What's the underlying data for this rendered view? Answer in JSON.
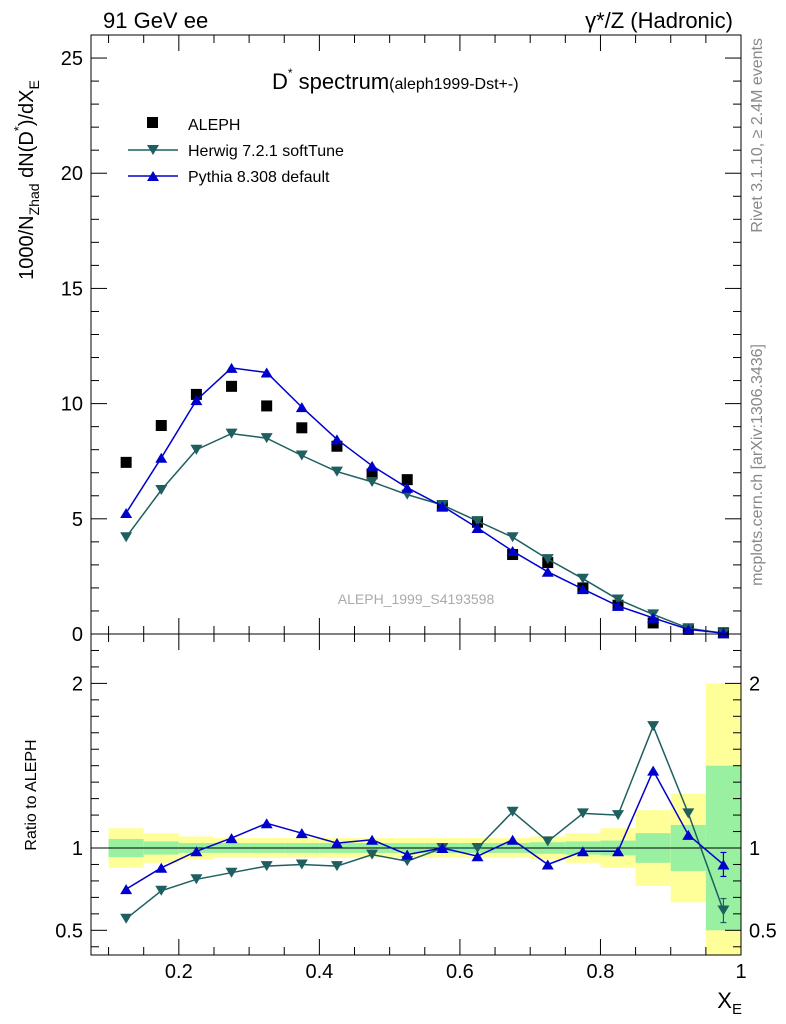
{
  "header": {
    "left": "91 GeV ee",
    "right": "γ*/Z (Hadronic)"
  },
  "side": {
    "rivet": "Rivet 3.1.10, ≥ 2.4M events",
    "mcplots": "mcplots.cern.ch [arXiv:1306.3436]"
  },
  "main": {
    "title_main": "D",
    "title_sup": "*",
    "title_rest": " spectrum",
    "title_tag": "(aleph1999-Dst+-)",
    "ylabel": "1000/N_Zhad dN(D*)/dX_E",
    "watermark": "ALEPH_1999_S4193598"
  },
  "ratio": {
    "ylabel": "Ratio to ALEPH"
  },
  "xlabel": "X_E",
  "colors": {
    "data": "#000000",
    "herwig": "#1f5f5f",
    "pythia": "#0000cc",
    "band_inner": "#99f0a0",
    "band_outer": "#ffff99"
  },
  "chart_data": [
    {
      "type": "scatter",
      "name": "main",
      "x": [
        0.125,
        0.175,
        0.225,
        0.275,
        0.325,
        0.375,
        0.425,
        0.475,
        0.525,
        0.575,
        0.625,
        0.675,
        0.725,
        0.775,
        0.825,
        0.875,
        0.925,
        0.975
      ],
      "xlim": [
        0.075,
        1.0
      ],
      "ylim": [
        0,
        26
      ],
      "xticks": [
        0.2,
        0.4,
        0.6,
        0.8,
        1
      ],
      "yticks": [
        0,
        5,
        10,
        15,
        20,
        25
      ],
      "series": [
        {
          "name": "ALEPH",
          "style": "marker-square",
          "values": [
            7.45,
            9.05,
            10.4,
            10.75,
            9.9,
            8.95,
            8.15,
            6.95,
            6.7,
            5.55,
            4.85,
            3.45,
            3.1,
            2.0,
            1.25,
            0.48,
            0.2,
            0.05
          ]
        },
        {
          "name": "Herwig 7.2.1 softTune",
          "style": "line-triangle-down",
          "values": [
            4.2,
            6.25,
            8.0,
            8.7,
            8.5,
            7.75,
            7.05,
            6.6,
            6.05,
            5.6,
            4.9,
            4.2,
            3.25,
            2.4,
            1.5,
            0.85,
            0.25,
            0.03
          ]
        },
        {
          "name": "Pythia 8.308 default",
          "style": "line-triangle-up",
          "values": [
            5.25,
            7.65,
            10.15,
            11.55,
            11.35,
            9.85,
            8.45,
            7.3,
            6.35,
            5.55,
            4.6,
            3.6,
            2.7,
            1.95,
            1.22,
            0.7,
            0.2,
            0.04
          ]
        }
      ]
    },
    {
      "type": "scatter",
      "name": "ratio",
      "x": [
        0.125,
        0.175,
        0.225,
        0.275,
        0.325,
        0.375,
        0.425,
        0.475,
        0.525,
        0.575,
        0.625,
        0.675,
        0.725,
        0.775,
        0.825,
        0.875,
        0.925,
        0.975
      ],
      "xlim": [
        0.075,
        1.0
      ],
      "ylim": [
        0.35,
        2.3
      ],
      "xticks": [
        0.2,
        0.4,
        0.6,
        0.8,
        1
      ],
      "xticklabels": [
        "0.2",
        "0.4",
        "0.6",
        "0.8",
        "1"
      ],
      "yticks": [
        0.5,
        1,
        2
      ],
      "yticklabels": [
        "0.5",
        "1",
        "2"
      ],
      "bands": {
        "edges": [
          0.1,
          0.15,
          0.2,
          0.25,
          0.3,
          0.35,
          0.4,
          0.45,
          0.5,
          0.55,
          0.6,
          0.65,
          0.7,
          0.75,
          0.8,
          0.85,
          0.9,
          0.95,
          1.0
        ],
        "inner": [
          0.055,
          0.04,
          0.03,
          0.03,
          0.03,
          0.03,
          0.03,
          0.03,
          0.03,
          0.03,
          0.03,
          0.03,
          0.035,
          0.04,
          0.045,
          0.09,
          0.14,
          0.5
        ],
        "outer_low": [
          0.12,
          0.09,
          0.07,
          0.06,
          0.06,
          0.06,
          0.06,
          0.06,
          0.06,
          0.06,
          0.06,
          0.06,
          0.07,
          0.09,
          0.12,
          0.23,
          0.33,
          0.66
        ],
        "outer_high": [
          0.12,
          0.09,
          0.07,
          0.06,
          0.06,
          0.06,
          0.06,
          0.06,
          0.06,
          0.06,
          0.06,
          0.06,
          0.07,
          0.09,
          0.12,
          0.23,
          0.33,
          1.0
        ]
      },
      "series": [
        {
          "name": "Herwig 7.2.1 softTune",
          "style": "line-triangle-down",
          "values": [
            0.57,
            0.74,
            0.81,
            0.85,
            0.89,
            0.9,
            0.89,
            0.96,
            0.92,
            1.0,
            1.0,
            1.22,
            1.04,
            1.21,
            1.2,
            1.74,
            1.21,
            0.62
          ]
        },
        {
          "name": "Pythia 8.308 default",
          "style": "line-triangle-up",
          "values": [
            0.75,
            0.88,
            0.98,
            1.06,
            1.15,
            1.09,
            1.03,
            1.05,
            0.96,
            1.0,
            0.95,
            1.05,
            0.9,
            0.98,
            0.98,
            1.47,
            1.08,
            0.9
          ]
        }
      ]
    }
  ]
}
